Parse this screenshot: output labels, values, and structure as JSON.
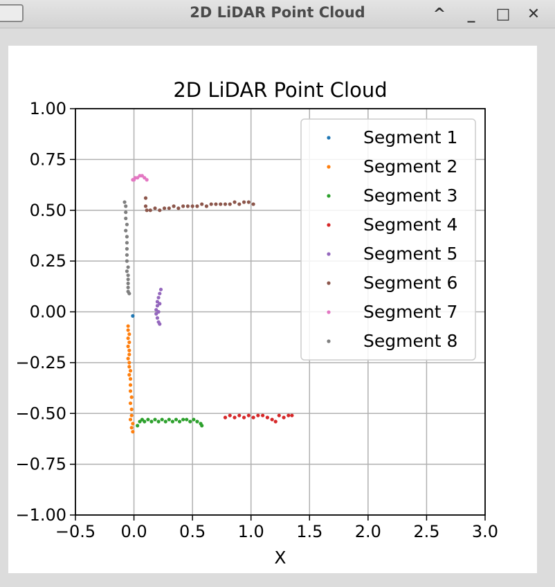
{
  "window": {
    "title": "2D LiDAR Point Cloud",
    "controls": [
      "^",
      "_",
      "□",
      "✕"
    ]
  },
  "chart_data": {
    "type": "scatter",
    "title": "2D LiDAR Point Cloud",
    "xlabel": "X",
    "ylabel": "",
    "xlim": [
      -0.5,
      3.0
    ],
    "ylim": [
      -1.0,
      1.0
    ],
    "xticks": [
      "−0.5",
      "0.0",
      "0.5",
      "1.0",
      "1.5",
      "2.0",
      "2.5",
      "3.0"
    ],
    "yticks": [
      "1.00",
      "0.75",
      "0.50",
      "0.25",
      "0.00",
      "−0.25",
      "−0.50",
      "−0.75",
      "−1.00"
    ],
    "grid": true,
    "legend_position": "top-right",
    "series": [
      {
        "name": "Segment 1",
        "color": "#1f77b4",
        "points": [
          [
            -0.01,
            -0.02
          ]
        ]
      },
      {
        "name": "Segment 2",
        "color": "#ff7f0e",
        "points": [
          [
            -0.05,
            -0.07
          ],
          [
            -0.05,
            -0.09
          ],
          [
            -0.04,
            -0.11
          ],
          [
            -0.05,
            -0.13
          ],
          [
            -0.04,
            -0.15
          ],
          [
            -0.05,
            -0.17
          ],
          [
            -0.04,
            -0.19
          ],
          [
            -0.04,
            -0.21
          ],
          [
            -0.05,
            -0.23
          ],
          [
            -0.04,
            -0.25
          ],
          [
            -0.04,
            -0.27
          ],
          [
            -0.03,
            -0.29
          ],
          [
            -0.04,
            -0.31
          ],
          [
            -0.03,
            -0.33
          ],
          [
            -0.03,
            -0.36
          ],
          [
            -0.03,
            -0.39
          ],
          [
            -0.02,
            -0.42
          ],
          [
            -0.03,
            -0.45
          ],
          [
            -0.02,
            -0.48
          ],
          [
            -0.02,
            -0.51
          ],
          [
            -0.03,
            -0.53
          ],
          [
            -0.01,
            -0.55
          ],
          [
            -0.02,
            -0.57
          ],
          [
            -0.01,
            -0.59
          ]
        ]
      },
      {
        "name": "Segment 3",
        "color": "#2ca02c",
        "points": [
          [
            0.03,
            -0.56
          ],
          [
            0.05,
            -0.54
          ],
          [
            0.07,
            -0.53
          ],
          [
            0.09,
            -0.54
          ],
          [
            0.12,
            -0.53
          ],
          [
            0.15,
            -0.54
          ],
          [
            0.18,
            -0.53
          ],
          [
            0.21,
            -0.54
          ],
          [
            0.24,
            -0.53
          ],
          [
            0.27,
            -0.54
          ],
          [
            0.3,
            -0.53
          ],
          [
            0.33,
            -0.54
          ],
          [
            0.36,
            -0.53
          ],
          [
            0.39,
            -0.54
          ],
          [
            0.42,
            -0.53
          ],
          [
            0.45,
            -0.53
          ],
          [
            0.48,
            -0.54
          ],
          [
            0.51,
            -0.53
          ],
          [
            0.54,
            -0.54
          ],
          [
            0.57,
            -0.55
          ],
          [
            0.58,
            -0.56
          ]
        ]
      },
      {
        "name": "Segment 4",
        "color": "#d62728",
        "points": [
          [
            0.78,
            -0.52
          ],
          [
            0.82,
            -0.51
          ],
          [
            0.86,
            -0.52
          ],
          [
            0.9,
            -0.51
          ],
          [
            0.94,
            -0.52
          ],
          [
            0.98,
            -0.51
          ],
          [
            1.02,
            -0.52
          ],
          [
            1.06,
            -0.51
          ],
          [
            1.1,
            -0.51
          ],
          [
            1.14,
            -0.52
          ],
          [
            1.18,
            -0.53
          ],
          [
            1.21,
            -0.54
          ],
          [
            1.24,
            -0.51
          ],
          [
            1.28,
            -0.52
          ],
          [
            1.32,
            -0.51
          ],
          [
            1.35,
            -0.51
          ]
        ]
      },
      {
        "name": "Segment 5",
        "color": "#9467bd",
        "points": [
          [
            0.23,
            0.11
          ],
          [
            0.22,
            0.09
          ],
          [
            0.21,
            0.07
          ],
          [
            0.2,
            0.05
          ],
          [
            0.2,
            0.03
          ],
          [
            0.19,
            0.01
          ],
          [
            0.19,
            -0.01
          ],
          [
            0.2,
            -0.03
          ],
          [
            0.21,
            -0.05
          ],
          [
            0.22,
            -0.06
          ],
          [
            0.21,
            0.0
          ],
          [
            0.22,
            0.04
          ]
        ]
      },
      {
        "name": "Segment 6",
        "color": "#8c564b",
        "points": [
          [
            0.1,
            0.56
          ],
          [
            0.1,
            0.52
          ],
          [
            0.11,
            0.5
          ],
          [
            0.14,
            0.5
          ],
          [
            0.18,
            0.51
          ],
          [
            0.22,
            0.5
          ],
          [
            0.26,
            0.51
          ],
          [
            0.3,
            0.51
          ],
          [
            0.34,
            0.52
          ],
          [
            0.38,
            0.51
          ],
          [
            0.42,
            0.52
          ],
          [
            0.46,
            0.52
          ],
          [
            0.5,
            0.52
          ],
          [
            0.54,
            0.52
          ],
          [
            0.58,
            0.53
          ],
          [
            0.62,
            0.52
          ],
          [
            0.66,
            0.53
          ],
          [
            0.7,
            0.53
          ],
          [
            0.74,
            0.53
          ],
          [
            0.78,
            0.53
          ],
          [
            0.82,
            0.53
          ],
          [
            0.86,
            0.54
          ],
          [
            0.9,
            0.53
          ],
          [
            0.94,
            0.54
          ],
          [
            0.98,
            0.54
          ],
          [
            1.02,
            0.53
          ]
        ]
      },
      {
        "name": "Segment 7",
        "color": "#e377c2",
        "points": [
          [
            -0.01,
            0.65
          ],
          [
            0.01,
            0.66
          ],
          [
            0.03,
            0.66
          ],
          [
            0.05,
            0.67
          ],
          [
            0.07,
            0.67
          ],
          [
            0.09,
            0.66
          ],
          [
            0.11,
            0.65
          ],
          [
            0.0,
            0.65
          ]
        ]
      },
      {
        "name": "Segment 8",
        "color": "#7f7f7f",
        "points": [
          [
            -0.08,
            0.54
          ],
          [
            -0.07,
            0.52
          ],
          [
            -0.07,
            0.49
          ],
          [
            -0.07,
            0.46
          ],
          [
            -0.06,
            0.43
          ],
          [
            -0.07,
            0.4
          ],
          [
            -0.06,
            0.37
          ],
          [
            -0.06,
            0.34
          ],
          [
            -0.06,
            0.31
          ],
          [
            -0.06,
            0.28
          ],
          [
            -0.06,
            0.25
          ],
          [
            -0.05,
            0.22
          ],
          [
            -0.06,
            0.2
          ],
          [
            -0.05,
            0.18
          ],
          [
            -0.05,
            0.16
          ],
          [
            -0.05,
            0.14
          ],
          [
            -0.05,
            0.12
          ],
          [
            -0.05,
            0.1
          ],
          [
            -0.04,
            0.09
          ]
        ]
      }
    ]
  }
}
